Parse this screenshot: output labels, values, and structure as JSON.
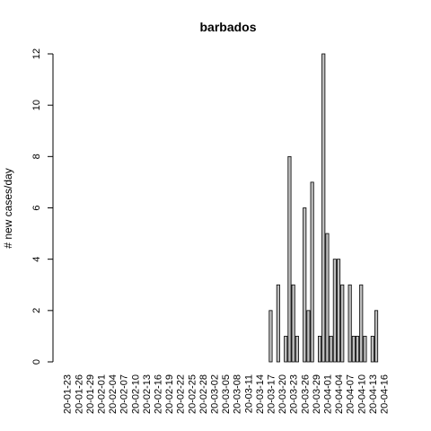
{
  "colors": {
    "bar_fill": "#bebebe",
    "bar_stroke": "#000000",
    "axis": "#000000",
    "background": "#ffffff"
  },
  "chart_data": {
    "type": "bar",
    "title": "barbados",
    "xlabel": "",
    "ylabel": "# new cases/day",
    "ylim": [
      0,
      12
    ],
    "y_ticks": [
      0,
      2,
      4,
      6,
      8,
      10,
      12
    ],
    "grid": false,
    "legend": "none",
    "x_tick_labels": [
      "20-01-23",
      "20-01-26",
      "20-01-29",
      "20-02-01",
      "20-02-04",
      "20-02-07",
      "20-02-10",
      "20-02-13",
      "20-02-16",
      "20-02-19",
      "20-02-22",
      "20-02-25",
      "20-02-28",
      "20-03-02",
      "20-03-05",
      "20-03-08",
      "20-03-11",
      "20-03-14",
      "20-03-17",
      "20-03-20",
      "20-03-23",
      "20-03-26",
      "20-03-29",
      "20-04-01",
      "20-04-04",
      "20-04-07",
      "20-04-10",
      "20-04-13",
      "20-04-16"
    ],
    "categories": [
      "20-01-23",
      "20-01-24",
      "20-01-25",
      "20-01-26",
      "20-01-27",
      "20-01-28",
      "20-01-29",
      "20-01-30",
      "20-01-31",
      "20-02-01",
      "20-02-02",
      "20-02-03",
      "20-02-04",
      "20-02-05",
      "20-02-06",
      "20-02-07",
      "20-02-08",
      "20-02-09",
      "20-02-10",
      "20-02-11",
      "20-02-12",
      "20-02-13",
      "20-02-14",
      "20-02-15",
      "20-02-16",
      "20-02-17",
      "20-02-18",
      "20-02-19",
      "20-02-20",
      "20-02-21",
      "20-02-22",
      "20-02-23",
      "20-02-24",
      "20-02-25",
      "20-02-26",
      "20-02-27",
      "20-02-28",
      "20-02-29",
      "20-03-01",
      "20-03-02",
      "20-03-03",
      "20-03-04",
      "20-03-05",
      "20-03-06",
      "20-03-07",
      "20-03-08",
      "20-03-09",
      "20-03-10",
      "20-03-11",
      "20-03-12",
      "20-03-13",
      "20-03-14",
      "20-03-15",
      "20-03-16",
      "20-03-17",
      "20-03-18",
      "20-03-19",
      "20-03-20",
      "20-03-21",
      "20-03-22",
      "20-03-23",
      "20-03-24",
      "20-03-25",
      "20-03-26",
      "20-03-27",
      "20-03-28",
      "20-03-29",
      "20-03-30",
      "20-03-31",
      "20-04-01",
      "20-04-02",
      "20-04-03",
      "20-04-04",
      "20-04-05",
      "20-04-06",
      "20-04-07",
      "20-04-08",
      "20-04-09",
      "20-04-10",
      "20-04-11",
      "20-04-12",
      "20-04-13",
      "20-04-14",
      "20-04-15",
      "20-04-16"
    ],
    "values": [
      0,
      0,
      0,
      0,
      0,
      0,
      0,
      0,
      0,
      0,
      0,
      0,
      0,
      0,
      0,
      0,
      0,
      0,
      0,
      0,
      0,
      0,
      0,
      0,
      0,
      0,
      0,
      0,
      0,
      0,
      0,
      0,
      0,
      0,
      0,
      0,
      0,
      0,
      0,
      0,
      0,
      0,
      0,
      0,
      0,
      0,
      0,
      0,
      0,
      0,
      0,
      0,
      0,
      0,
      2,
      0,
      3,
      0,
      1,
      8,
      3,
      1,
      0,
      6,
      2,
      7,
      0,
      1,
      12,
      5,
      1,
      4,
      4,
      3,
      0,
      3,
      1,
      1,
      3,
      1,
      0,
      1,
      2,
      0,
      0
    ]
  }
}
